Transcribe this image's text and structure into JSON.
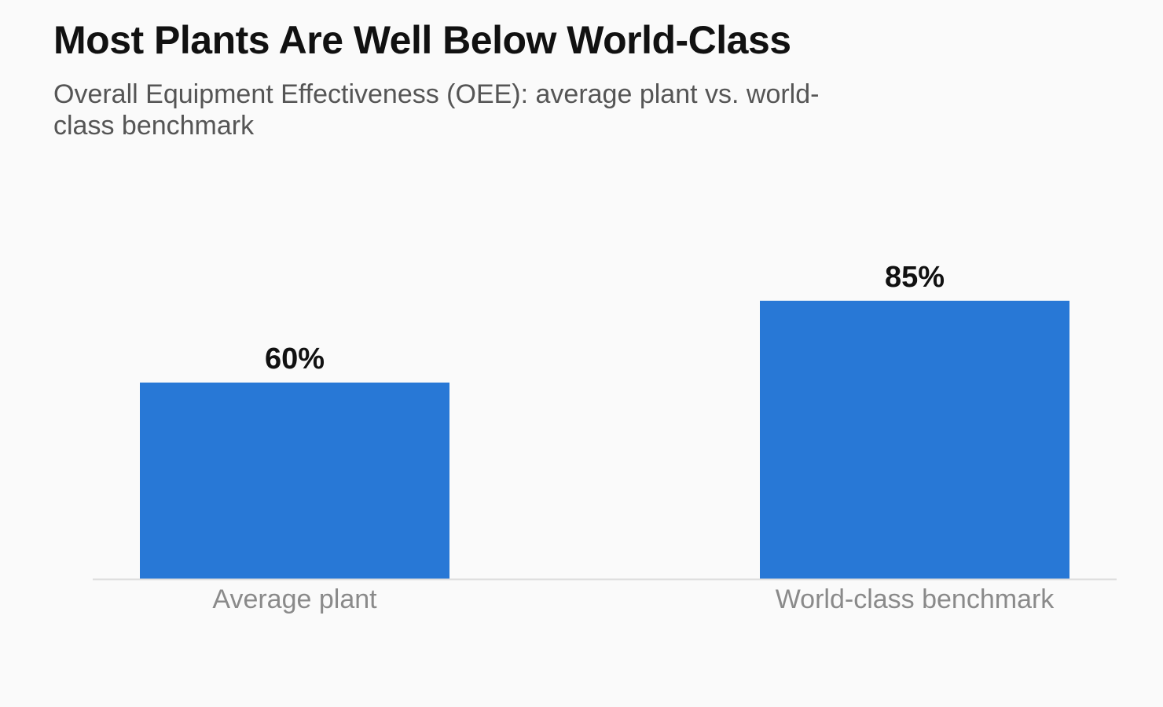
{
  "chart_data": {
    "type": "bar",
    "title": "Most Plants Are Well Below World-Class",
    "subtitle": "Overall Equipment Effectiveness (OEE): average plant vs. world-class benchmark",
    "categories": [
      "Average plant",
      "World-class benchmark"
    ],
    "values": [
      60,
      85
    ],
    "value_labels": [
      "60%",
      "85%"
    ],
    "xlabel": "",
    "ylabel": "",
    "ylim": [
      0,
      100
    ],
    "grid": false,
    "legend": "none",
    "bar_color": "#2878d6",
    "baseline_color": "#dcdcdc"
  }
}
